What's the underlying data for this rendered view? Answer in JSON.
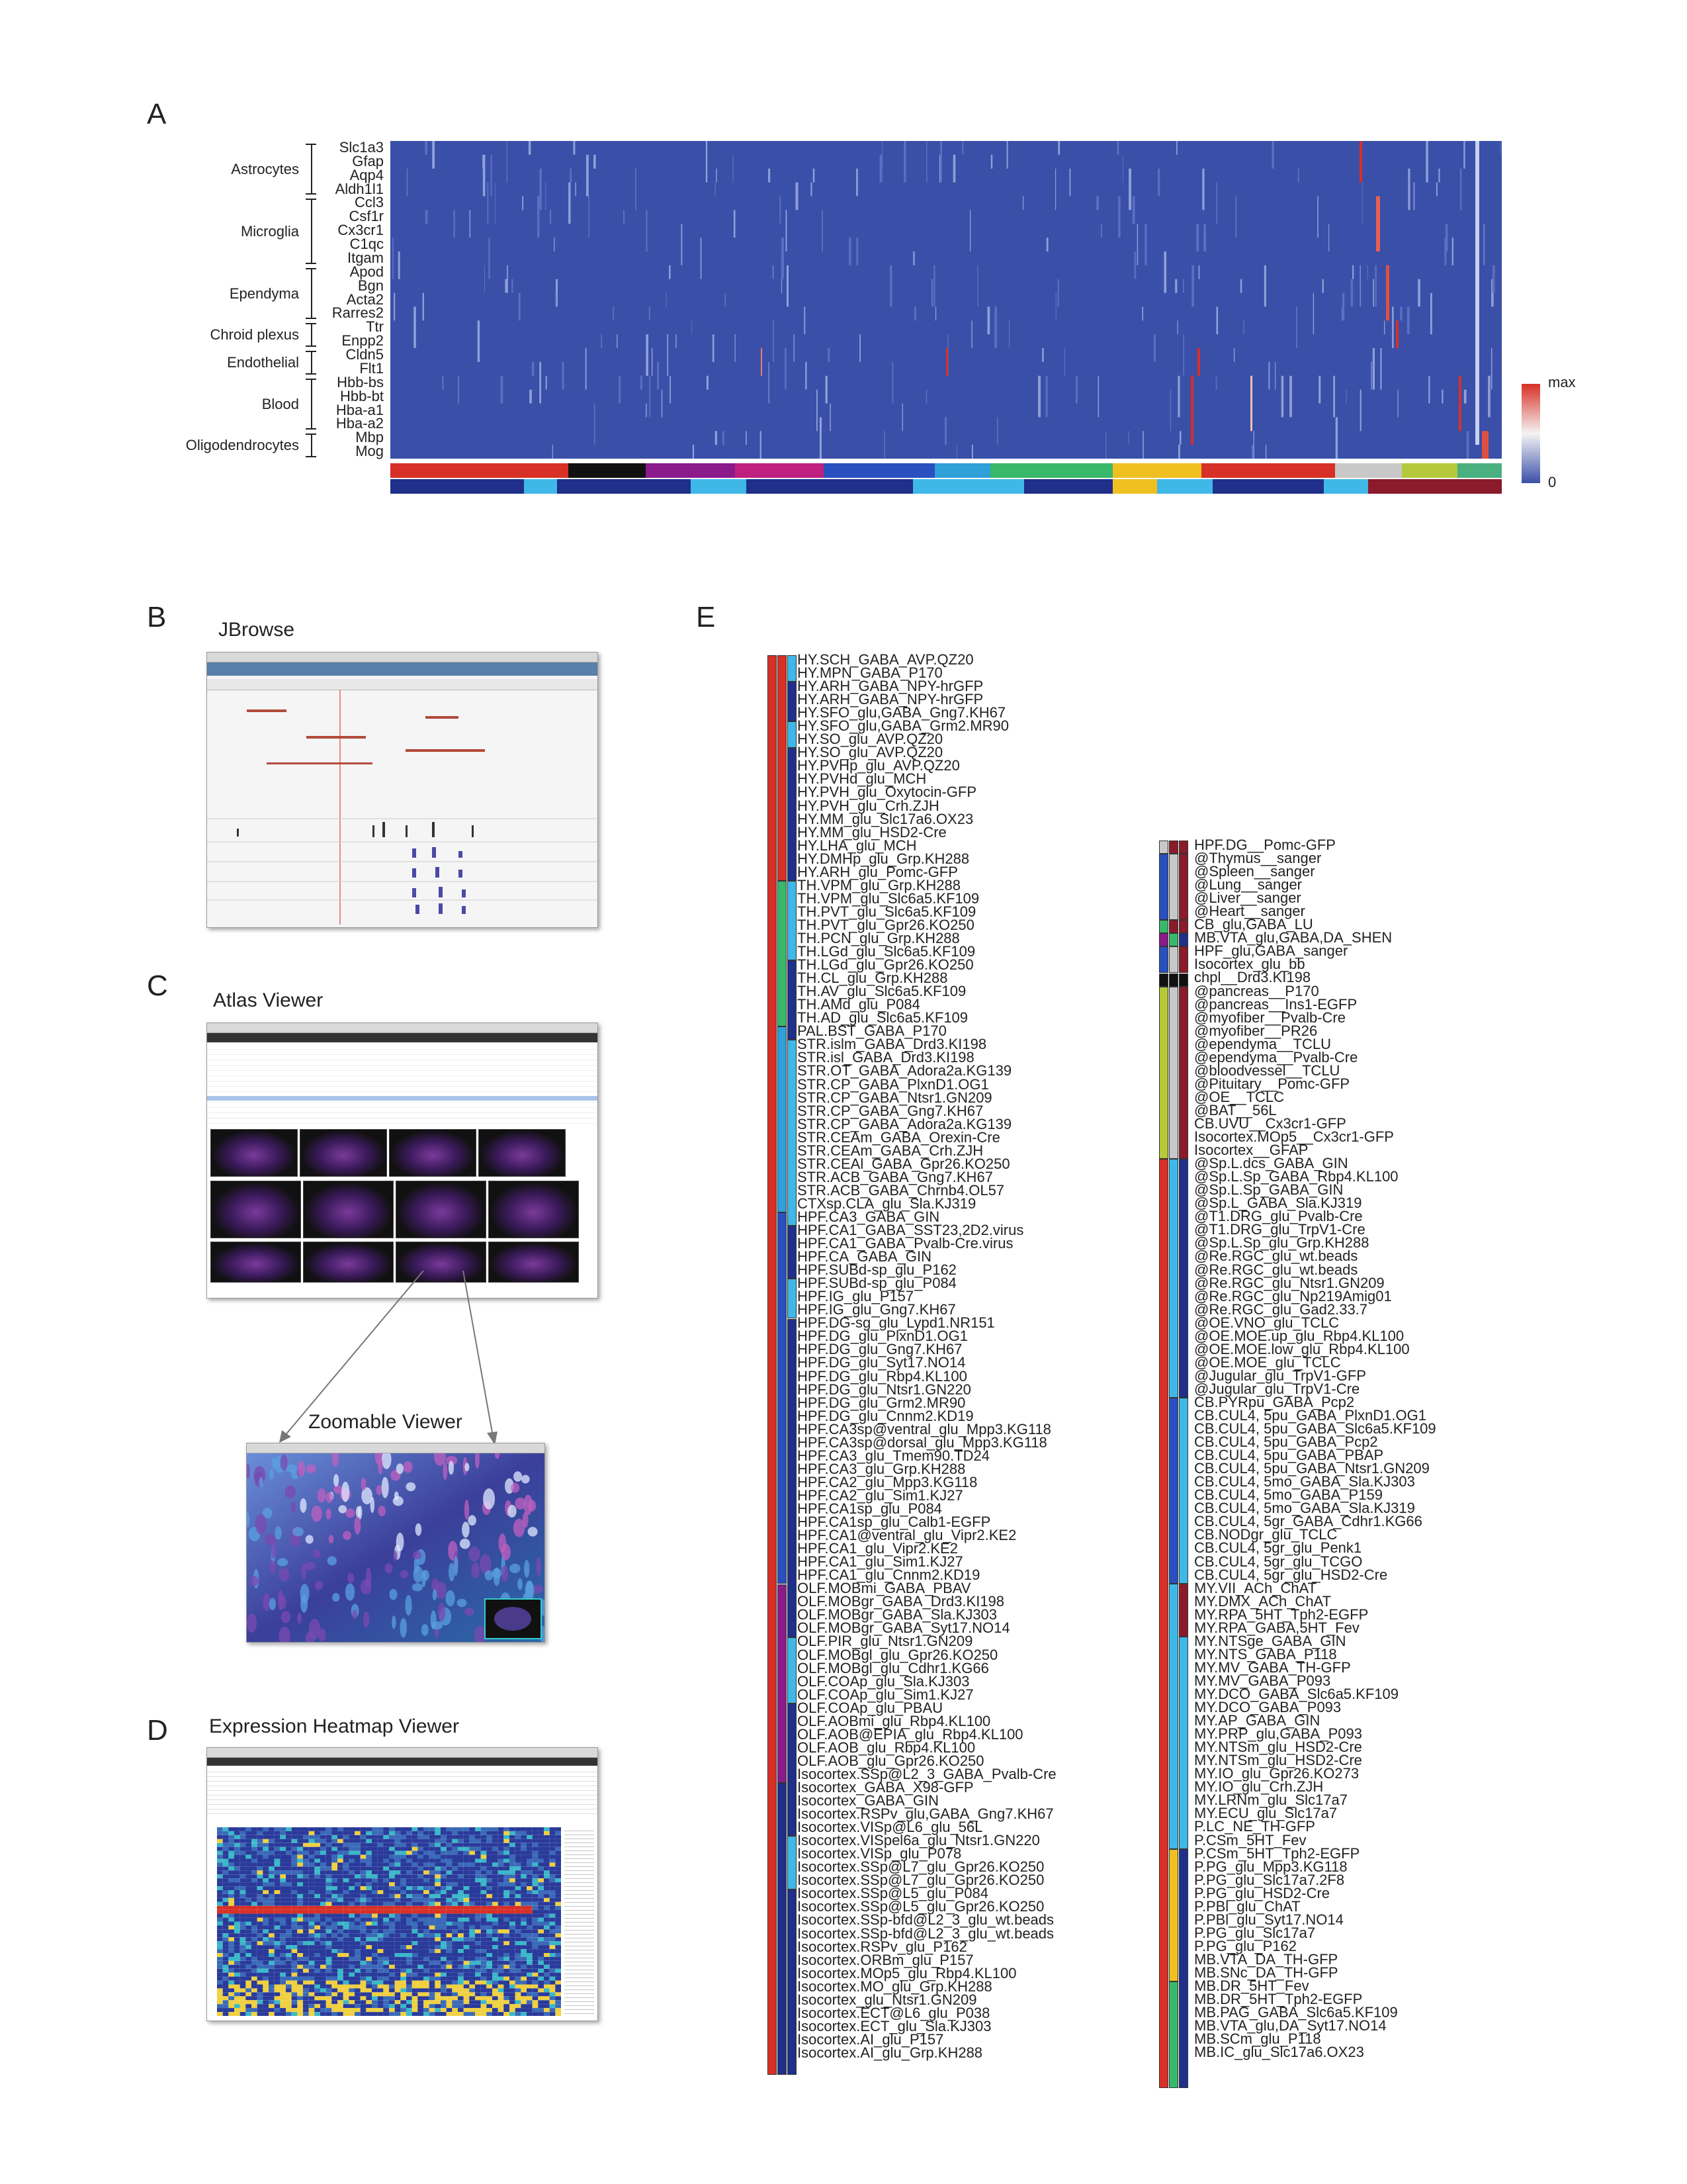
{
  "panels": {
    "a": "A",
    "b": "B",
    "c": "C",
    "d": "D",
    "e": "E"
  },
  "titles": {
    "jbrowse": "JBrowse",
    "atlas": "Atlas Viewer",
    "zoomable": "Zoomable Viewer",
    "heatmap_viewer": "Expression Heatmap Viewer"
  },
  "panel_a": {
    "genes": [
      "Slc1a3",
      "Gfap",
      "Aqp4",
      "Aldh1l1",
      "Ccl3",
      "Csf1r",
      "Cx3cr1",
      "C1qc",
      "Itgam",
      "Apod",
      "Bgn",
      "Acta2",
      "Rarres2",
      "Ttr",
      "Enpp2",
      "Cldn5",
      "Flt1",
      "Hbb-bs",
      "Hbb-bt",
      "Hba-a1",
      "Hba-a2",
      "Mbp",
      "Mog"
    ],
    "groups": [
      "Astrocytes",
      "Microglia",
      "Ependyma",
      "Chroid plexus",
      "Endothelial",
      "Blood",
      "Oligodendrocytes"
    ],
    "legend_max": "max",
    "legend_min": "0",
    "colors": {
      "low": "#3a4fa8",
      "mid": "#f4f4f4",
      "high": "#d73027"
    }
  },
  "panel_e": {
    "left_list": [
      "HY.SCH_GABA_AVP.QZ20",
      "HY.MPN_GABA_P170",
      "HY.ARH_GABA_NPY-hrGFP",
      "HY.ARH_GABA_NPY-hrGFP",
      "HY.SFO_glu,GABA_Gng7.KH67",
      "HY.SFO_glu,GABA_Grm2.MR90",
      "HY.SO_glu_AVP.QZ20",
      "HY.SO_glu_AVP.QZ20",
      "HY.PVHp_glu_AVP.QZ20",
      "HY.PVHd_glu_MCH",
      "HY.PVH_glu_Oxytocin-GFP",
      "HY.PVH_glu_Crh.ZJH",
      "HY.MM_glu_Slc17a6.OX23",
      "HY.MM_glu_HSD2-Cre",
      "HY.LHA_glu_MCH",
      "HY.DMHp_glu_Grp.KH288",
      "HY.ARH_glu_Pomc-GFP",
      "TH.VPM_glu_Grp.KH288",
      "TH.VPM_glu_Slc6a5.KF109",
      "TH.PVT_glu_Slc6a5.KF109",
      "TH.PVT_glu_Gpr26.KO250",
      "TH.PCN_glu_Grp.KH288",
      "TH.LGd_glu_Slc6a5.KF109",
      "TH.LGd_glu_Gpr26.KO250",
      "TH.CL_glu_Grp.KH288",
      "TH.AV_glu_Slc6a5.KF109",
      "TH.AMd_glu_P084",
      "TH.AD_glu_Slc6a5.KF109",
      "PAL.BST_GABA_P170",
      "STR.islm_GABA_Drd3.KI198",
      "STR.isl_GABA_Drd3.KI198",
      "STR.OT_GABA_Adora2a.KG139",
      "STR.CP_GABA_PlxnD1.OG1",
      "STR.CP_GABA_Ntsr1.GN209",
      "STR.CP_GABA_Gng7.KH67",
      "STR.CP_GABA_Adora2a.KG139",
      "STR.CEAm_GABA_Orexin-Cre",
      "STR.CEAm_GABA_Crh.ZJH",
      "STR.CEAl_GABA_Gpr26.KO250",
      "STR.ACB_GABA_Gng7.KH67",
      "STR.ACB_GABA_Chrnb4.OL57",
      "CTXsp.CLA_glu_Sla.KJ319",
      "HPF.CA3_GABA_GIN",
      "HPF.CA1_GABA_SST23,2D2.virus",
      "HPF.CA1_GABA_Pvalb-Cre.virus",
      "HPF.CA_GABA_GIN",
      "HPF.SUBd-sp_glu_P162",
      "HPF.SUBd-sp_glu_P084",
      "HPF.IG_glu_P157",
      "HPF.IG_glu_Gng7.KH67",
      "HPF.DG-sg_glu_Lypd1.NR151",
      "HPF.DG_glu_PlxnD1.OG1",
      "HPF.DG_glu_Gng7.KH67",
      "HPF.DG_glu_Syt17.NO14",
      "HPF.DG_glu_Rbp4.KL100",
      "HPF.DG_glu_Ntsr1.GN220",
      "HPF.DG_glu_Grm2.MR90",
      "HPF.DG_glu_Cnnm2.KD19",
      "HPF.CA3sp@ventral_glu_Mpp3.KG118",
      "HPF.CA3sp@dorsal_glu_Mpp3.KG118",
      "HPF.CA3_glu_Tmem90.TD24",
      "HPF.CA3_glu_Grp.KH288",
      "HPF.CA2_glu_Mpp3.KG118",
      "HPF.CA2_glu_Sim1.KJ27",
      "HPF.CA1sp_glu_P084",
      "HPF.CA1sp_glu_Calb1-EGFP",
      "HPF.CA1@ventral_glu_Vipr2.KE2",
      "HPF.CA1_glu_Vipr2.KE2",
      "HPF.CA1_glu_Sim1.KJ27",
      "HPF.CA1_glu_Cnnm2.KD19",
      "OLF.MOBmi_GABA_PBAV",
      "OLF.MOBgr_GABA_Drd3.KI198",
      "OLF.MOBgr_GABA_Sla.KJ303",
      "OLF.MOBgr_GABA_Syt17.NO14",
      "OLF.PIR_glu_Ntsr1.GN209",
      "OLF.MOBgl_glu_Gpr26.KO250",
      "OLF.MOBgl_glu_Cdhr1.KG66",
      "OLF.COAp_glu_Sla.KJ303",
      "OLF.COAp_glu_Sim1.KJ27",
      "OLF.COAp_glu_PBAU",
      "OLF.AOBmi_glu_Rbp4.KL100",
      "OLF.AOB@EPIA_glu_Rbp4.KL100",
      "OLF.AOB_glu_Rbp4.KL100",
      "OLF.AOB_glu_Gpr26.KO250",
      "Isocortex.SSp@L2_3_GABA_Pvalb-Cre",
      "Isocortex_GABA_X98-GFP",
      "Isocortex_GABA_GIN",
      "Isocortex.RSPv_glu,GABA_Gng7.KH67",
      "Isocortex.VISp@L6_glu_56L",
      "Isocortex.VISpel6a_glu_Ntsr1.GN220",
      "Isocortex.VISp_glu_P078",
      "Isocortex.SSp@L7_glu_Gpr26.KO250",
      "Isocortex.SSp@L7_glu_Gpr26.KO250",
      "Isocortex.SSp@L5_glu_P084",
      "Isocortex.SSp@L5_glu_Gpr26.KO250",
      "Isocortex.SSp-bfd@L2_3_glu_wt.beads",
      "Isocortex.SSp-bfd@L2_3_glu_wt.beads",
      "Isocortex.RSPv_glu_P162",
      "Isocortex.ORBm_glu_P157",
      "Isocortex.MOp5_glu_Rbp4.KL100",
      "Isocortex.MO_glu_Grp.KH288",
      "Isocortex_glu_Ntsr1.GN209",
      "Isocortex.ECT@L6_glu_P038",
      "Isocortex.ECT_glu_Sla.KJ303",
      "Isocortex.AI_glu_P157",
      "Isocortex.AI_glu_Grp.KH288"
    ],
    "right_list": [
      "HPF.DG__Pomc-GFP",
      "@Thymus__sanger",
      "@Spleen__sanger",
      "@Lung__sanger",
      "@Liver__sanger",
      "@Heart__sanger",
      "CB_glu,GABA_LU",
      "MB.VTA_glu,GABA,DA_SHEN",
      "HPF_glu,GABA_sanger",
      "Isocortex_glu_bb",
      "chpl__Drd3.KI198",
      "@pancreas__P170",
      "@pancreas__Ins1-EGFP",
      "@myofiber__Pvalb-Cre",
      "@myofiber__PR26",
      "@ependyma__TCLU",
      "@ependyma__Pvalb-Cre",
      "@bloodvessel__TCLU",
      "@Pituitary__Pomc-GFP",
      "@OE__TCLC",
      "@BAT__56L",
      "CB.UVU__Cx3cr1-GFP",
      "Isocortex.MOp5__Cx3cr1-GFP",
      "Isocortex__GFAP",
      "@Sp.L.dcs_GABA_GIN",
      "@Sp.L.Sp_GABA_Rbp4.KL100",
      "@Sp.L.Sp_GABA_GIN",
      "@Sp.L_GABA_Sla.KJ319",
      "@T1.DRG_glu_Pvalb-Cre",
      "@T1.DRG_glu_TrpV1-Cre",
      "@Sp.L.Sp_glu_Grp.KH288",
      "@Re.RGC_glu_wt.beads",
      "@Re.RGC_glu_wt.beads",
      "@Re.RGC_glu_Ntsr1.GN209",
      "@Re.RGC_glu_Np219Amig01",
      "@Re.RGC_glu_Gad2.33.7",
      "@OE.VNO_glu_TCLC",
      "@OE.MOE.up_glu_Rbp4.KL100",
      "@OE.MOE.low_glu_Rbp4.KL100",
      "@OE.MOE_glu_TCLC",
      "@Jugular_glu_TrpV1-GFP",
      "@Jugular_glu_TrpV1-Cre",
      "CB.PYRpu_GABA_Pcp2",
      "CB.CUL4, 5pu_GABA_PlxnD1.OG1",
      "CB.CUL4, 5pu_GABA_Slc6a5.KF109",
      "CB.CUL4, 5pu_GABA_Pcp2",
      "CB.CUL4, 5pu_GABA_PBAP",
      "CB.CUL4, 5pu_GABA_Ntsr1.GN209",
      "CB.CUL4, 5mo_GABA_Sla.KJ303",
      "CB.CUL4, 5mo_GABA_P159",
      "CB.CUL4, 5mo_GABA_Sla.KJ319",
      "CB.CUL4, 5gr_GABA_Cdhr1.KG66",
      "CB.NODgr_glu_TCLC",
      "CB.CUL4, 5gr_glu_Penk1",
      "CB.CUL4, 5gr_glu_TCGO",
      "CB.CUL4, 5gr_glu_HSD2-Cre",
      "MY.VII_ACh_ChAT",
      "MY.DMX_ACh_ChAT",
      "MY.RPA_5HT_Tph2-EGFP",
      "MY.RPA_GABA,5HT_Fev",
      "MY.NTSge_GABA_GIN",
      "MY.NTS_GABA_P118",
      "MY.MV_GABA_TH-GFP",
      "MY.MV_GABA_P093",
      "MY.DCO_GABA_Slc6a5.KF109",
      "MY.DCO_GABA_P093",
      "MY.AP_GABA_GIN",
      "MY.PRP_glu,GABA_P093",
      "MY.NTSm_glu_HSD2-Cre",
      "MY.NTSm_glu_HSD2-Cre",
      "MY.IO_glu_Gpr26.KO273",
      "MY.IO_glu_Crh.ZJH",
      "MY.LRNm_glu_Slc17a7",
      "MY.ECU_glu_Slc17a7",
      "P.LC_NE_TH-GFP",
      "P.CSm_5HT_Fev",
      "P.CSm_5HT_Tph2-EGFP",
      "P.PG_glu_Mpp3.KG118",
      "P.PG_glu_Slc17a7.2F8",
      "P.PG_glu_HSD2-Cre",
      "P.PBl_glu_ChAT",
      "P.PBl_glu_Syt17.NO14",
      "P.PG_glu_Slc17a7",
      "P.PG_glu_P162",
      "MB.VTA_DA_TH-GFP",
      "MB.SNc_DA_TH-GFP",
      "MB.DR_5HT_Fev",
      "MB.DR_5HT_Tph2-EGFP",
      "MB.PAG_GABA_Slc6a5.KF109",
      "MB.VTA_glu,DA_Syt17.NO14",
      "MB.SCm_glu_P118",
      "MB.IC_glu_Slc17a6.OX23"
    ]
  }
}
